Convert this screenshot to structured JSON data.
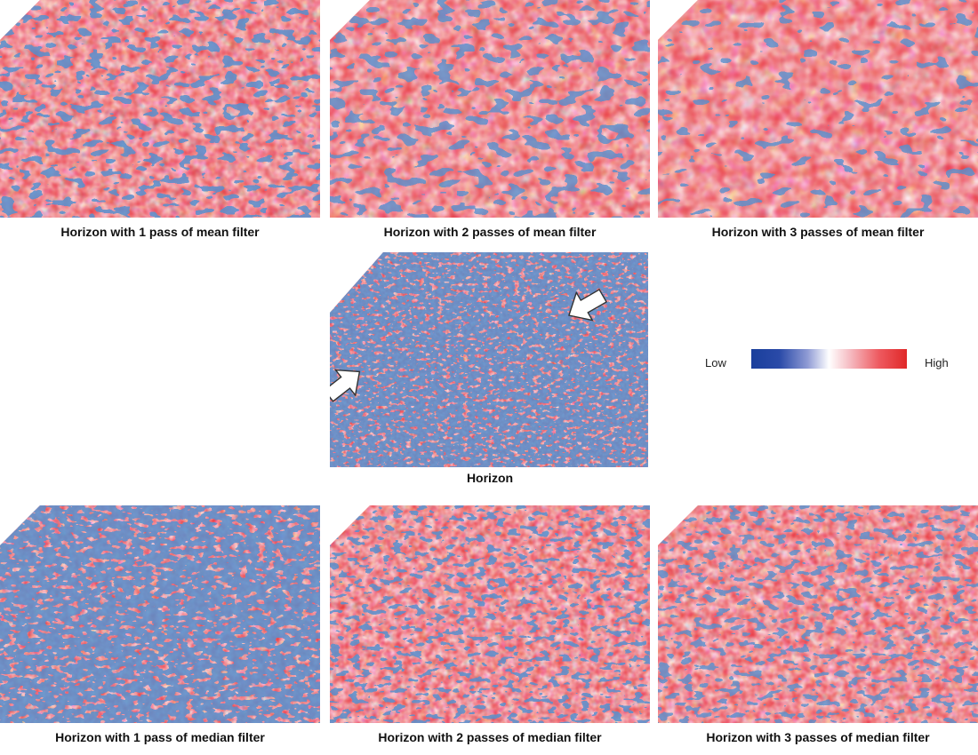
{
  "panels": [
    {
      "caption": "Horizon with 1 pass of mean filter",
      "filter": "mean",
      "passes": 1
    },
    {
      "caption": "Horizon with 2 passes of mean filter",
      "filter": "mean",
      "passes": 2
    },
    {
      "caption": "Horizon with 3 passes of mean filter",
      "filter": "mean",
      "passes": 3
    },
    {
      "caption": "Horizon",
      "filter": "none",
      "passes": 0
    },
    {
      "caption": "Horizon with 1 pass of median filter",
      "filter": "median",
      "passes": 1
    },
    {
      "caption": "Horizon with 2 passes of median filter",
      "filter": "median",
      "passes": 2
    },
    {
      "caption": "Horizon with 3 passes of median filter",
      "filter": "median",
      "passes": 3
    }
  ],
  "legend": {
    "low_label": "Low",
    "high_label": "High",
    "colors": [
      "#1a3f9c",
      "#5a6fc0",
      "#b8c2e6",
      "#ffffff",
      "#f5b8bf",
      "#ee5a60",
      "#e02828"
    ]
  },
  "colors": {
    "low": "#1a4aa0",
    "high": "#e8323a",
    "background": "#ffffff"
  },
  "annotations": {
    "arrow_count": 2,
    "arrow_icon": "white-arrow-icon"
  }
}
